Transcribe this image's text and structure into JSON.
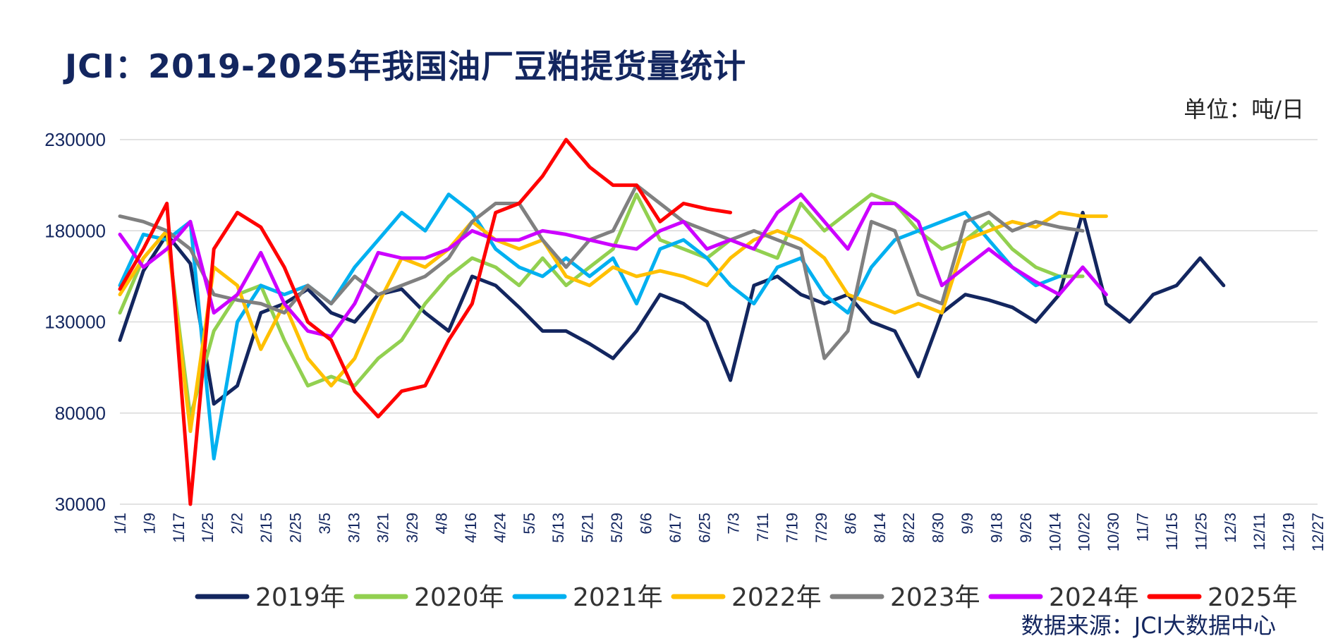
{
  "title": "JCI：2019-2025年我国油厂豆粕提货量统计",
  "unit_label": "单位：吨/日",
  "source_label": "数据来源：JCI大数据中心",
  "chart_data": {
    "type": "line",
    "title": "JCI：2019-2025年我国油厂豆粕提货量统计",
    "ylim": [
      30000,
      230000
    ],
    "yticks": [
      30000,
      80000,
      130000,
      180000,
      230000
    ],
    "ytick_labels": [
      "30000",
      "80000",
      "130000",
      "180000",
      "230000"
    ],
    "grid": true,
    "legend_position": "bottom",
    "x_count": 52,
    "x_tick_labels": [
      "1/1",
      "1/9",
      "1/17",
      "1/25",
      "2/2",
      "2/15",
      "2/25",
      "3/5",
      "3/13",
      "3/21",
      "3/29",
      "4/8",
      "4/16",
      "4/24",
      "5/5",
      "5/13",
      "5/21",
      "5/29",
      "6/6",
      "6/17",
      "6/25",
      "7/3",
      "7/11",
      "7/19",
      "7/29",
      "8/6",
      "8/14",
      "8/22",
      "8/30",
      "9/9",
      "9/18",
      "9/26",
      "10/14",
      "10/22",
      "10/30",
      "11/7",
      "11/15",
      "11/25",
      "12/3",
      "12/11",
      "12/19",
      "12/27"
    ],
    "series": [
      {
        "name": "2019年",
        "color": "#13265f",
        "values": [
          120000,
          158000,
          178000,
          162000,
          85000,
          95000,
          135000,
          140000,
          148000,
          135000,
          130000,
          145000,
          148000,
          135000,
          125000,
          155000,
          150000,
          138000,
          125000,
          125000,
          118000,
          110000,
          125000,
          145000,
          140000,
          130000,
          98000,
          150000,
          155000,
          145000,
          140000,
          145000,
          130000,
          125000,
          100000,
          135000,
          145000,
          142000,
          138000,
          130000,
          145000,
          190000,
          140000,
          130000,
          145000,
          150000,
          165000,
          150000,
          null,
          null,
          null,
          null
        ]
      },
      {
        "name": "2020年",
        "color": "#92d050",
        "values": [
          135000,
          165000,
          180000,
          78000,
          125000,
          145000,
          150000,
          120000,
          95000,
          100000,
          95000,
          110000,
          120000,
          140000,
          155000,
          165000,
          160000,
          150000,
          165000,
          150000,
          160000,
          170000,
          200000,
          175000,
          170000,
          165000,
          175000,
          170000,
          165000,
          195000,
          180000,
          190000,
          200000,
          195000,
          180000,
          170000,
          175000,
          185000,
          170000,
          160000,
          155000,
          155000,
          null,
          null,
          null,
          null,
          null,
          null,
          null,
          null,
          null,
          null
        ]
      },
      {
        "name": "2021年",
        "color": "#00b0f0",
        "values": [
          150000,
          178000,
          175000,
          185000,
          55000,
          130000,
          150000,
          145000,
          150000,
          140000,
          160000,
          175000,
          190000,
          180000,
          200000,
          190000,
          170000,
          160000,
          155000,
          165000,
          155000,
          165000,
          140000,
          170000,
          175000,
          165000,
          150000,
          140000,
          160000,
          165000,
          145000,
          135000,
          160000,
          175000,
          180000,
          185000,
          190000,
          175000,
          160000,
          150000,
          155000,
          null,
          null,
          null,
          null,
          null,
          null,
          null,
          null,
          null,
          null,
          null
        ]
      },
      {
        "name": "2022年",
        "color": "#ffc000",
        "values": [
          145000,
          165000,
          180000,
          70000,
          160000,
          150000,
          115000,
          140000,
          110000,
          95000,
          110000,
          140000,
          165000,
          160000,
          170000,
          185000,
          175000,
          170000,
          175000,
          155000,
          150000,
          160000,
          155000,
          158000,
          155000,
          150000,
          165000,
          175000,
          180000,
          175000,
          165000,
          145000,
          140000,
          135000,
          140000,
          135000,
          175000,
          180000,
          185000,
          182000,
          190000,
          188000,
          188000,
          null,
          null,
          null,
          null,
          null,
          null,
          null,
          null,
          null
        ]
      },
      {
        "name": "2023年",
        "color": "#808080",
        "values": [
          188000,
          185000,
          180000,
          170000,
          145000,
          142000,
          140000,
          135000,
          150000,
          140000,
          155000,
          145000,
          150000,
          155000,
          165000,
          185000,
          195000,
          195000,
          175000,
          160000,
          175000,
          180000,
          205000,
          195000,
          185000,
          180000,
          175000,
          180000,
          175000,
          170000,
          110000,
          125000,
          185000,
          180000,
          145000,
          140000,
          185000,
          190000,
          180000,
          185000,
          182000,
          180000,
          null,
          null,
          null,
          null,
          null,
          null,
          null,
          null,
          null,
          null
        ]
      },
      {
        "name": "2024年",
        "color": "#cc00ff",
        "values": [
          178000,
          160000,
          170000,
          185000,
          135000,
          145000,
          168000,
          140000,
          125000,
          122000,
          140000,
          168000,
          165000,
          165000,
          170000,
          180000,
          175000,
          175000,
          180000,
          178000,
          175000,
          172000,
          170000,
          180000,
          185000,
          170000,
          175000,
          170000,
          190000,
          200000,
          185000,
          170000,
          195000,
          195000,
          185000,
          150000,
          160000,
          170000,
          160000,
          152000,
          145000,
          160000,
          145000,
          null,
          null,
          null,
          null,
          null,
          null,
          null,
          null,
          null
        ]
      },
      {
        "name": "2025年",
        "color": "#ff0000",
        "values": [
          148000,
          170000,
          195000,
          30000,
          170000,
          190000,
          182000,
          160000,
          130000,
          120000,
          92000,
          78000,
          92000,
          95000,
          120000,
          140000,
          190000,
          195000,
          210000,
          230000,
          215000,
          205000,
          205000,
          185000,
          195000,
          192000,
          190000,
          null,
          null,
          null,
          null,
          null,
          null,
          null,
          null,
          null,
          null,
          null,
          null,
          null,
          null,
          null,
          null,
          null,
          null,
          null,
          null,
          null,
          null,
          null,
          null,
          null
        ]
      }
    ]
  }
}
